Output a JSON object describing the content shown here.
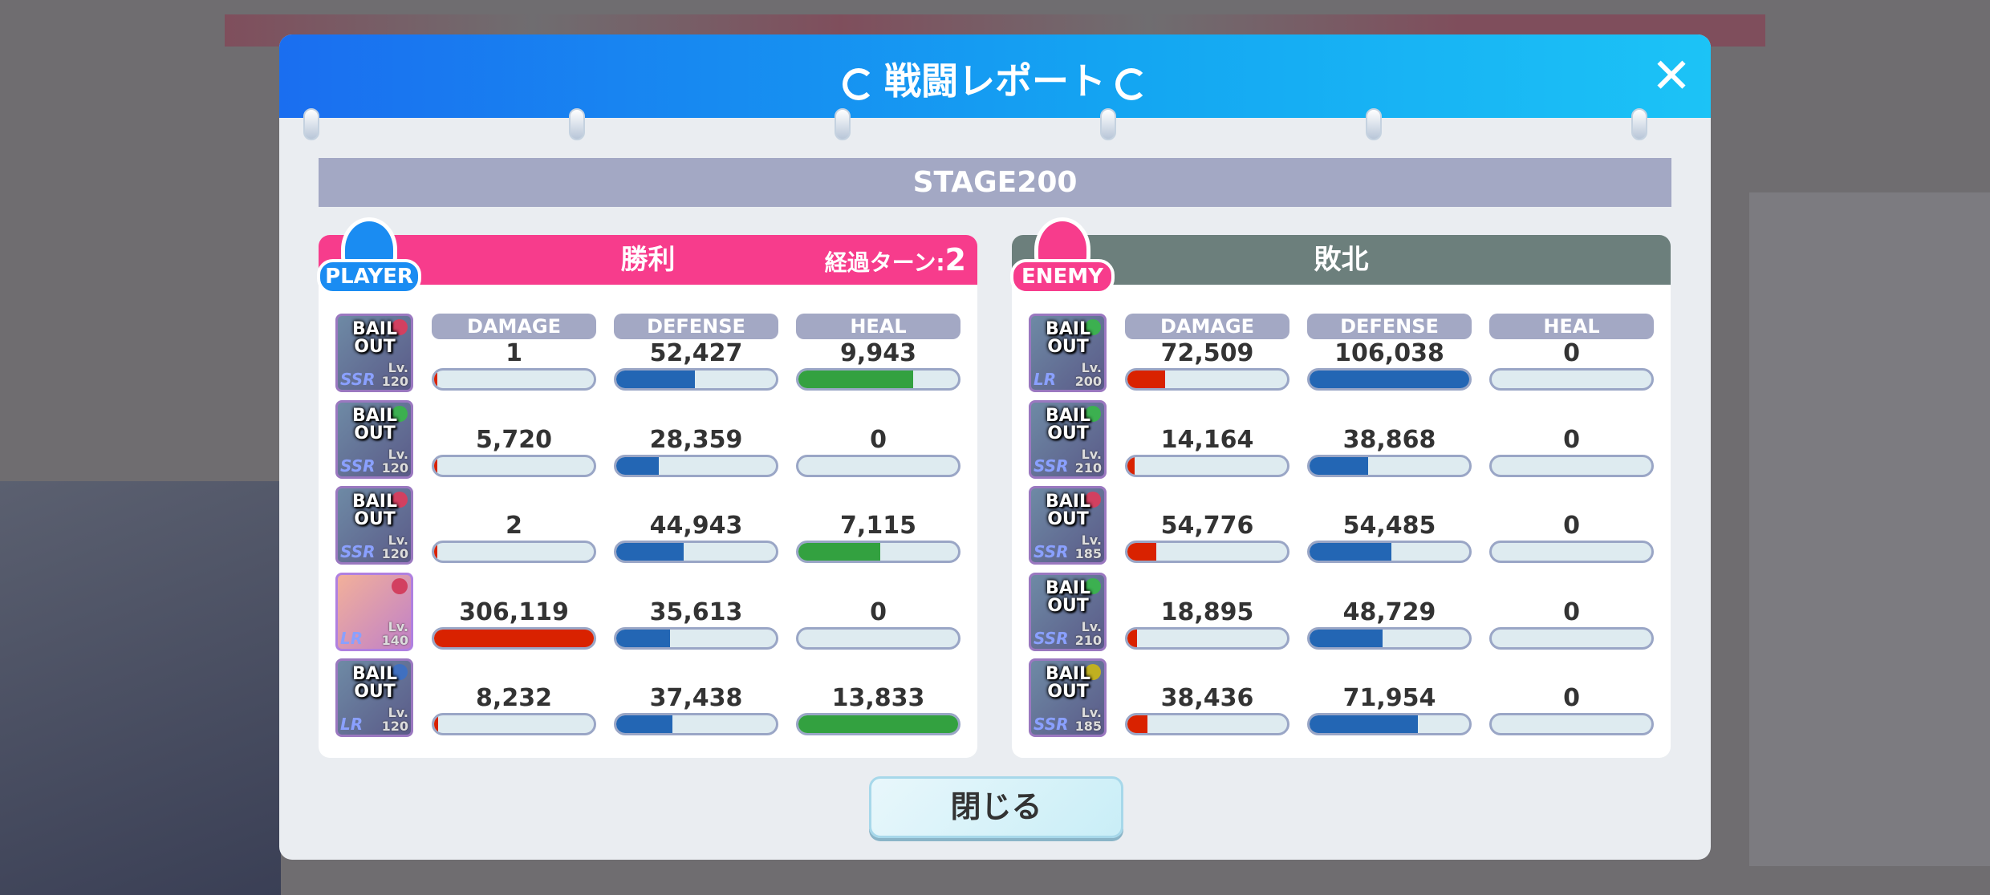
{
  "title": "戦闘レポート",
  "stage": "STAGE200",
  "close_button": "閉じる",
  "colors": {
    "header": "#1a8cf2",
    "player": "#f73c8c",
    "enemy": "#6c7f7c",
    "damage": "#d92200",
    "defense": "#2366b4",
    "heal": "#33a140"
  },
  "columns": [
    "DAMAGE",
    "DEFENSE",
    "HEAL"
  ],
  "player": {
    "badge": "PLAYER",
    "result": "勝利",
    "turn_label": "経過ターン:",
    "turn_value": "2",
    "units": [
      {
        "status": "BAIL OUT",
        "rarity": "SSR",
        "level": "120",
        "damage": "1",
        "defense": "52,427",
        "heal": "9,943"
      },
      {
        "status": "BAIL OUT",
        "rarity": "SSR",
        "level": "120",
        "damage": "5,720",
        "defense": "28,359",
        "heal": "0"
      },
      {
        "status": "BAIL OUT",
        "rarity": "SSR",
        "level": "120",
        "damage": "2",
        "defense": "44,943",
        "heal": "7,115"
      },
      {
        "status": "",
        "rarity": "LR",
        "level": "140",
        "damage": "306,119",
        "defense": "35,613",
        "heal": "0"
      },
      {
        "status": "BAIL OUT",
        "rarity": "LR",
        "level": "120",
        "damage": "8,232",
        "defense": "37,438",
        "heal": "13,833"
      }
    ]
  },
  "enemy": {
    "badge": "ENEMY",
    "result": "敗北",
    "units": [
      {
        "status": "BAIL OUT",
        "rarity": "LR",
        "level": "200",
        "damage": "72,509",
        "defense": "106,038",
        "heal": "0"
      },
      {
        "status": "BAIL OUT",
        "rarity": "SSR",
        "level": "210",
        "damage": "14,164",
        "defense": "38,868",
        "heal": "0"
      },
      {
        "status": "BAIL OUT",
        "rarity": "SSR",
        "level": "185",
        "damage": "54,776",
        "defense": "54,485",
        "heal": "0"
      },
      {
        "status": "BAIL OUT",
        "rarity": "SSR",
        "level": "210",
        "damage": "18,895",
        "defense": "48,729",
        "heal": "0"
      },
      {
        "status": "BAIL OUT",
        "rarity": "SSR",
        "level": "185",
        "damage": "38,436",
        "defense": "71,954",
        "heal": "0"
      }
    ]
  }
}
